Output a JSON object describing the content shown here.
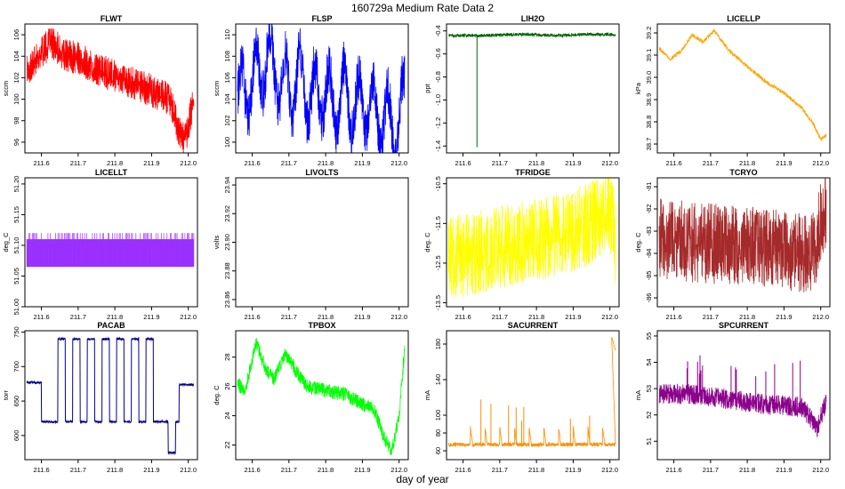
{
  "figure": {
    "title": "160729a   Medium Rate Data 2",
    "xlabel": "day of year",
    "x_ticks": [
      "211.6",
      "211.7",
      "211.8",
      "211.9",
      "212.0"
    ]
  },
  "chart_data": [
    {
      "type": "line",
      "title": "FLWT",
      "ylabel": "sccm",
      "color": "#ff0000",
      "xlim": [
        211.555,
        212.025
      ],
      "ylim": [
        95,
        107
      ],
      "y_ticks": [
        "96",
        "98",
        "100",
        "102",
        "104",
        "106"
      ],
      "shape": [
        [
          211.56,
          102.5
        ],
        [
          211.6,
          104.5
        ],
        [
          211.63,
          105.3
        ],
        [
          211.66,
          104.2
        ],
        [
          211.7,
          103.8
        ],
        [
          211.75,
          102.8
        ],
        [
          211.8,
          102.2
        ],
        [
          211.85,
          101.5
        ],
        [
          211.9,
          100.8
        ],
        [
          211.95,
          100.0
        ],
        [
          211.97,
          97.5
        ],
        [
          211.99,
          96.0
        ],
        [
          212.0,
          97.5
        ],
        [
          212.015,
          100.0
        ]
      ],
      "noise": 2.2,
      "spikes": 0
    },
    {
      "type": "line",
      "title": "FLSP",
      "ylabel": "sccm",
      "color": "#0000ff",
      "xlim": [
        211.555,
        212.025
      ],
      "ylim": [
        99,
        111
      ],
      "y_ticks": [
        "100",
        "102",
        "104",
        "106",
        "108",
        "110"
      ],
      "shape": [
        [
          211.56,
          104
        ],
        [
          211.6,
          105.5
        ],
        [
          211.64,
          108
        ],
        [
          211.67,
          106
        ],
        [
          211.7,
          105
        ],
        [
          211.73,
          106
        ],
        [
          211.76,
          104
        ],
        [
          211.79,
          105
        ],
        [
          211.82,
          103.5
        ],
        [
          211.85,
          104.5
        ],
        [
          211.88,
          103
        ],
        [
          211.91,
          104
        ],
        [
          211.94,
          102.5
        ],
        [
          211.97,
          102
        ],
        [
          211.99,
          101
        ],
        [
          212.015,
          104
        ]
      ],
      "noise": 3.2,
      "oscillation": 2.8,
      "spikes": 0
    },
    {
      "type": "line",
      "title": "LIH2O",
      "ylabel": "ppt",
      "color": "#006400",
      "xlim": [
        211.555,
        212.025
      ],
      "ylim": [
        -1.46,
        -0.34
      ],
      "y_ticks": [
        "-1.4",
        "-1.2",
        "-1.0",
        "-0.8",
        "-0.6",
        "-0.4"
      ],
      "shape": [
        [
          211.56,
          -0.44
        ],
        [
          211.65,
          -0.44
        ],
        [
          211.75,
          -0.43
        ],
        [
          211.85,
          -0.44
        ],
        [
          211.95,
          -0.43
        ],
        [
          212.015,
          -0.43
        ]
      ],
      "noise": 0.02,
      "spikes": 0,
      "drop": {
        "x": 211.638,
        "y": -1.41
      }
    },
    {
      "type": "line",
      "title": "LICELLP",
      "ylabel": "kPa",
      "color": "#ffa500",
      "xlim": [
        211.555,
        212.025
      ],
      "ylim": [
        38.66,
        39.24
      ],
      "y_ticks": [
        "38.7",
        "38.8",
        "38.9",
        "39.0",
        "39.1",
        "39.2"
      ],
      "shape": [
        [
          211.56,
          39.13
        ],
        [
          211.59,
          39.08
        ],
        [
          211.62,
          39.12
        ],
        [
          211.65,
          39.19
        ],
        [
          211.68,
          39.16
        ],
        [
          211.71,
          39.21
        ],
        [
          211.75,
          39.12
        ],
        [
          211.8,
          39.05
        ],
        [
          211.85,
          38.98
        ],
        [
          211.9,
          38.93
        ],
        [
          211.95,
          38.86
        ],
        [
          211.98,
          38.79
        ],
        [
          212.0,
          38.72
        ],
        [
          212.015,
          38.74
        ]
      ],
      "noise": 0.012,
      "spikes": 0
    },
    {
      "type": "line",
      "title": "LICELLT",
      "ylabel": "deg_C",
      "color": "#9b30ff",
      "xlim": [
        211.555,
        212.025
      ],
      "ylim": [
        51.0,
        51.21
      ],
      "y_ticks": [
        "51.00",
        "51.05",
        "51.10",
        "51.15",
        "51.20"
      ],
      "shape": [
        [
          211.56,
          51.09
        ],
        [
          212.015,
          51.09
        ]
      ],
      "band": [
        51.065,
        51.12
      ],
      "spikes": 0
    },
    {
      "type": "line",
      "title": "LIVOLTS",
      "ylabel": "volts",
      "color": "#000000",
      "xlim": [
        211.555,
        212.025
      ],
      "ylim": [
        23.855,
        23.945
      ],
      "y_ticks": [
        "23.86",
        "23.88",
        "23.90",
        "23.92",
        "23.94"
      ],
      "shape": [],
      "empty": true
    },
    {
      "type": "line",
      "title": "TFRIDGE",
      "ylabel": "deg. C",
      "color": "#ffff00",
      "xlim": [
        211.555,
        212.025
      ],
      "ylim": [
        -13.6,
        -10.35
      ],
      "y_ticks": [
        "-13.5",
        "-12.5",
        "-11.5",
        "-10.5"
      ],
      "shape": [
        [
          211.56,
          -12.4
        ],
        [
          211.65,
          -12.2
        ],
        [
          211.75,
          -12.0
        ],
        [
          211.85,
          -11.8
        ],
        [
          211.95,
          -11.5
        ],
        [
          212.0,
          -11.1
        ],
        [
          212.015,
          -12.0
        ]
      ],
      "noise": 1.5,
      "spikes": 0
    },
    {
      "type": "line",
      "title": "TCRYO",
      "ylabel": "deg. C",
      "color": "#a52a2a",
      "xlim": [
        211.555,
        212.025
      ],
      "ylim": [
        -86.4,
        -80.6
      ],
      "y_ticks": [
        "-86",
        "-85",
        "-84",
        "-83",
        "-82",
        "-81"
      ],
      "shape": [
        [
          211.56,
          -83.3
        ],
        [
          211.65,
          -83.5
        ],
        [
          211.75,
          -83.6
        ],
        [
          211.85,
          -83.7
        ],
        [
          211.95,
          -84.0
        ],
        [
          211.985,
          -83.8
        ],
        [
          212.0,
          -82.5
        ],
        [
          212.015,
          -82.0
        ]
      ],
      "noise": 2.6,
      "spikes": 0
    },
    {
      "type": "line",
      "title": "PACAB",
      "ylabel": "torr",
      "color": "#00008b",
      "xlim": [
        211.555,
        212.025
      ],
      "ylim": [
        565,
        752
      ],
      "y_ticks": [
        "600",
        "650",
        "700",
        "750"
      ],
      "square": {
        "base": 620,
        "high": 740,
        "start": 211.56,
        "pre": 677,
        "pulses": [
          [
            211.645,
            211.665
          ],
          [
            211.685,
            211.705
          ],
          [
            211.725,
            211.745
          ],
          [
            211.765,
            211.785
          ],
          [
            211.805,
            211.825
          ],
          [
            211.845,
            211.865
          ],
          [
            211.885,
            211.905
          ]
        ],
        "dip": [
          211.945,
          211.965,
          575
        ],
        "post": 674
      },
      "noise": 3
    },
    {
      "type": "line",
      "title": "TPBOX",
      "ylabel": "deg. C",
      "color": "#00ff00",
      "xlim": [
        211.555,
        212.025
      ],
      "ylim": [
        21.0,
        29.8
      ],
      "y_ticks": [
        "22",
        "24",
        "26",
        "28"
      ],
      "shape": [
        [
          211.56,
          26.3
        ],
        [
          211.58,
          25.5
        ],
        [
          211.61,
          29.0
        ],
        [
          211.64,
          27.0
        ],
        [
          211.66,
          26.5
        ],
        [
          211.69,
          28.3
        ],
        [
          211.72,
          27.0
        ],
        [
          211.75,
          26.0
        ],
        [
          211.8,
          25.7
        ],
        [
          211.85,
          25.5
        ],
        [
          211.9,
          24.8
        ],
        [
          211.93,
          24.5
        ],
        [
          211.96,
          22.5
        ],
        [
          211.98,
          21.5
        ],
        [
          212.0,
          24.0
        ],
        [
          212.015,
          28.5
        ]
      ],
      "noise": 0.7,
      "spikes": 0
    },
    {
      "type": "line",
      "title": "SACURRENT",
      "ylabel": "mA",
      "color": "#ff8c00",
      "xlim": [
        211.555,
        212.025
      ],
      "ylim": [
        50,
        195
      ],
      "y_ticks": [
        "60",
        "80",
        "100",
        "140",
        "180"
      ],
      "shape": [
        [
          211.56,
          67
        ],
        [
          212.015,
          67
        ]
      ],
      "noise": 3,
      "sawtooth": {
        "period": 0.04,
        "amp": 22,
        "start": 211.62
      },
      "spikes": 8,
      "spike_top": 118,
      "tail": {
        "x": 212.005,
        "y": 188
      }
    },
    {
      "type": "line",
      "title": "SPCURRENT",
      "ylabel": "mA",
      "color": "#8b008b",
      "xlim": [
        211.555,
        212.025
      ],
      "ylim": [
        50.3,
        55.2
      ],
      "y_ticks": [
        "51",
        "52",
        "53",
        "54",
        "55"
      ],
      "shape": [
        [
          211.56,
          52.8
        ],
        [
          211.65,
          52.8
        ],
        [
          211.75,
          52.6
        ],
        [
          211.85,
          52.4
        ],
        [
          211.95,
          52.3
        ],
        [
          211.99,
          51.5
        ],
        [
          212.015,
          52.5
        ]
      ],
      "noise": 0.55,
      "spikes": 16,
      "spike_top": 54.3
    }
  ]
}
